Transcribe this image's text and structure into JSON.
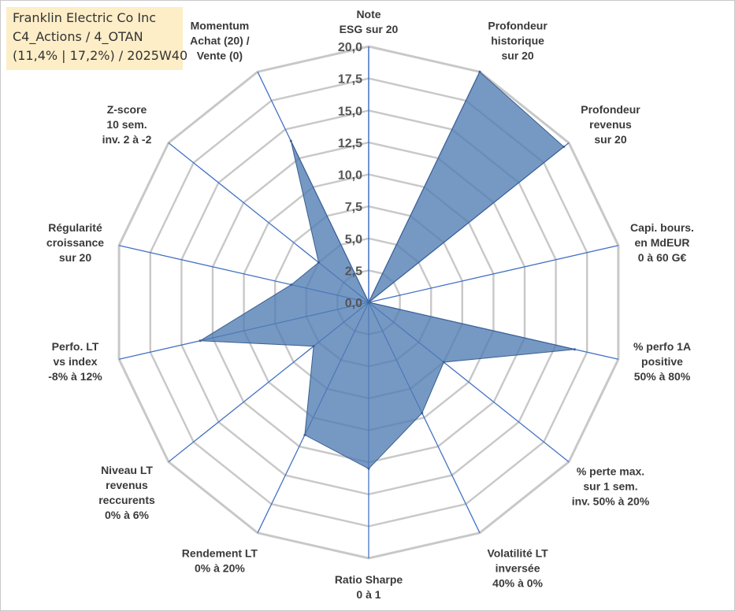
{
  "title_box": {
    "line1": "Franklin Electric Co Inc",
    "line2": "C4_Actions / 4_OTAN",
    "line3": "(11,4% | 17,2%) / 2025W40"
  },
  "chart_data": {
    "type": "radar",
    "title": "Franklin Electric Co Inc",
    "rlim": [
      0,
      20
    ],
    "ticks": [
      "0,0",
      "2,5",
      "5,0",
      "7,5",
      "10,0",
      "12,5",
      "15,0",
      "17,5",
      "20,0"
    ],
    "tick_values": [
      0,
      2.5,
      5,
      7.5,
      10,
      12.5,
      15,
      17.5,
      20
    ],
    "grid": true,
    "categories": [
      [
        "Note",
        "ESG sur 20"
      ],
      [
        "Profondeur",
        "historique",
        "sur 20"
      ],
      [
        "Profondeur",
        "revenus",
        "sur 20"
      ],
      [
        "Capi. bours.",
        "en MdEUR",
        "0 à 60 G€"
      ],
      [
        "% perfo 1A",
        "positive",
        "50% à 80%"
      ],
      [
        "% perte max.",
        "sur 1 sem.",
        "inv. 50% à 20%"
      ],
      [
        "Volatilité LT",
        "inversée",
        "40% à 0%"
      ],
      [
        "Ratio Sharpe",
        "0 à 1"
      ],
      [
        "Rendement LT",
        "0% à 20%"
      ],
      [
        "Niveau LT",
        "revenus",
        "reccurents",
        "0% à 6%"
      ],
      [
        "Perfo. LT",
        "vs index",
        "-8% à 12%"
      ],
      [
        "Régularité",
        "croissance",
        "sur 20"
      ],
      [
        "Z-score",
        "10 sem.",
        "inv. 2 à -2"
      ],
      [
        "Momentum",
        "Achat (20) /",
        "Vente (0)"
      ]
    ],
    "series": [
      {
        "name": "Franklin Electric Co Inc",
        "values": [
          0,
          20,
          19.5,
          0,
          16.5,
          7.5,
          9.6,
          13,
          11.5,
          5.5,
          13.5,
          6.2,
          5,
          14
        ],
        "color": "#4f7cb3"
      }
    ]
  },
  "colors": {
    "grid": "#c8c8c8",
    "axis": "#4472c4",
    "fill": "#4f7cb3",
    "title_bg": "#fdeec8"
  }
}
